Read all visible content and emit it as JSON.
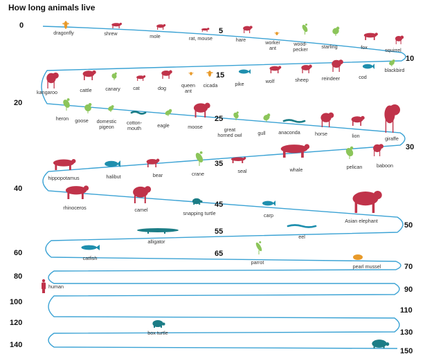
{
  "title": "How long animals live",
  "colors": {
    "track": "#3aa2d4",
    "mammal": "#c0334a",
    "bird": "#8cc55a",
    "fish": "#1f8fae",
    "reptile": "#1c7d86",
    "insect": "#e89a2a"
  },
  "numbers": [
    "0",
    "5",
    "10",
    "15",
    "20",
    "25",
    "30",
    "35",
    "40",
    "45",
    "50",
    "55",
    "60",
    "65",
    "70",
    "80",
    "90",
    "100",
    "110",
    "120",
    "130",
    "140",
    "150"
  ],
  "animals": [
    {
      "name": "dragonfly",
      "lines": [
        "dragonfly"
      ],
      "kind": "insect",
      "icon": "dragonfly-icon"
    },
    {
      "name": "shrew",
      "lines": [
        "shrew"
      ],
      "kind": "mammal",
      "icon": "shrew-icon"
    },
    {
      "name": "mole",
      "lines": [
        "mole"
      ],
      "kind": "mammal",
      "icon": "mole-icon"
    },
    {
      "name": "rat, mouse",
      "lines": [
        "rat, mouse"
      ],
      "kind": "mammal",
      "icon": "rat-mouse-icon"
    },
    {
      "name": "hare",
      "lines": [
        "hare"
      ],
      "kind": "mammal",
      "icon": "hare-icon"
    },
    {
      "name": "worker ant",
      "lines": [
        "worker",
        "ant"
      ],
      "kind": "insect",
      "icon": "worker-ant-icon"
    },
    {
      "name": "woodpecker",
      "lines": [
        "wood-",
        "pecker"
      ],
      "kind": "bird",
      "icon": "woodpecker-icon"
    },
    {
      "name": "starling",
      "lines": [
        "starling"
      ],
      "kind": "bird",
      "icon": "starling-icon"
    },
    {
      "name": "fox",
      "lines": [
        "fox"
      ],
      "kind": "mammal",
      "icon": "fox-icon"
    },
    {
      "name": "squirrel",
      "lines": [
        "squirrel"
      ],
      "kind": "mammal",
      "icon": "squirrel-icon"
    },
    {
      "name": "blackbird",
      "lines": [
        "blackbird"
      ],
      "kind": "bird",
      "icon": "blackbird-icon"
    },
    {
      "name": "cod",
      "lines": [
        "cod"
      ],
      "kind": "fish",
      "icon": "cod-icon"
    },
    {
      "name": "reindeer",
      "lines": [
        "reindeer"
      ],
      "kind": "mammal",
      "icon": "reindeer-icon"
    },
    {
      "name": "sheep",
      "lines": [
        "sheep"
      ],
      "kind": "mammal",
      "icon": "sheep-icon"
    },
    {
      "name": "wolf",
      "lines": [
        "wolf"
      ],
      "kind": "mammal",
      "icon": "wolf-icon"
    },
    {
      "name": "pike",
      "lines": [
        "pike"
      ],
      "kind": "fish",
      "icon": "pike-icon"
    },
    {
      "name": "cicada",
      "lines": [
        "cicada"
      ],
      "kind": "insect",
      "icon": "cicada-icon"
    },
    {
      "name": "queen ant",
      "lines": [
        "queen",
        "ant"
      ],
      "kind": "insect",
      "icon": "queen-ant-icon"
    },
    {
      "name": "dog",
      "lines": [
        "dog"
      ],
      "kind": "mammal",
      "icon": "dog-icon"
    },
    {
      "name": "cat",
      "lines": [
        "cat"
      ],
      "kind": "mammal",
      "icon": "cat-icon"
    },
    {
      "name": "canary",
      "lines": [
        "canary"
      ],
      "kind": "bird",
      "icon": "canary-icon"
    },
    {
      "name": "cattle",
      "lines": [
        "cattle"
      ],
      "kind": "mammal",
      "icon": "cattle-icon"
    },
    {
      "name": "kangaroo",
      "lines": [
        "kangaroo"
      ],
      "kind": "mammal",
      "icon": "kangaroo-icon"
    },
    {
      "name": "heron",
      "lines": [
        "heron"
      ],
      "kind": "bird",
      "icon": "heron-icon"
    },
    {
      "name": "goose",
      "lines": [
        "goose"
      ],
      "kind": "bird",
      "icon": "goose-icon"
    },
    {
      "name": "domestic pigeon",
      "lines": [
        "domestic",
        "pigeon"
      ],
      "kind": "bird",
      "icon": "pigeon-icon"
    },
    {
      "name": "cottonmouth",
      "lines": [
        "cotton-",
        "mouth"
      ],
      "kind": "reptile",
      "icon": "cottonmouth-icon"
    },
    {
      "name": "eagle",
      "lines": [
        "eagle"
      ],
      "kind": "bird",
      "icon": "eagle-icon"
    },
    {
      "name": "moose",
      "lines": [
        "moose"
      ],
      "kind": "mammal",
      "icon": "moose-icon"
    },
    {
      "name": "great horned owl",
      "lines": [
        "great",
        "horned owl"
      ],
      "kind": "bird",
      "icon": "owl-icon"
    },
    {
      "name": "gull",
      "lines": [
        "gull"
      ],
      "kind": "bird",
      "icon": "gull-icon"
    },
    {
      "name": "anaconda",
      "lines": [
        "anaconda"
      ],
      "kind": "reptile",
      "icon": "anaconda-icon"
    },
    {
      "name": "horse",
      "lines": [
        "horse"
      ],
      "kind": "mammal",
      "icon": "horse-icon"
    },
    {
      "name": "lion",
      "lines": [
        "lion"
      ],
      "kind": "mammal",
      "icon": "lion-icon"
    },
    {
      "name": "giraffe",
      "lines": [
        "giraffe"
      ],
      "kind": "mammal",
      "icon": "giraffe-icon"
    },
    {
      "name": "baboon",
      "lines": [
        "baboon"
      ],
      "kind": "mammal",
      "icon": "baboon-icon"
    },
    {
      "name": "pelican",
      "lines": [
        "pelican"
      ],
      "kind": "bird",
      "icon": "pelican-icon"
    },
    {
      "name": "whale",
      "lines": [
        "whale"
      ],
      "kind": "mammal",
      "icon": "whale-icon"
    },
    {
      "name": "seal",
      "lines": [
        "seal"
      ],
      "kind": "mammal",
      "icon": "seal-icon"
    },
    {
      "name": "crane",
      "lines": [
        "crane"
      ],
      "kind": "bird",
      "icon": "crane-icon"
    },
    {
      "name": "bear",
      "lines": [
        "bear"
      ],
      "kind": "mammal",
      "icon": "bear-icon"
    },
    {
      "name": "halibut",
      "lines": [
        "halibut"
      ],
      "kind": "fish",
      "icon": "halibut-icon"
    },
    {
      "name": "hippopotamus",
      "lines": [
        "hippopotamus"
      ],
      "kind": "mammal",
      "icon": "hippo-icon"
    },
    {
      "name": "rhinoceros",
      "lines": [
        "rhinoceros"
      ],
      "kind": "mammal",
      "icon": "rhino-icon"
    },
    {
      "name": "camel",
      "lines": [
        "camel"
      ],
      "kind": "mammal",
      "icon": "camel-icon"
    },
    {
      "name": "snapping turtle",
      "lines": [
        "snapping turtle"
      ],
      "kind": "reptile",
      "icon": "snapping-turtle-icon"
    },
    {
      "name": "carp",
      "lines": [
        "carp"
      ],
      "kind": "fish",
      "icon": "carp-icon"
    },
    {
      "name": "Asian elephant",
      "lines": [
        "Asian elephant"
      ],
      "kind": "mammal",
      "icon": "elephant-icon"
    },
    {
      "name": "eel",
      "lines": [
        "eel"
      ],
      "kind": "fish",
      "icon": "eel-icon"
    },
    {
      "name": "alligator",
      "lines": [
        "alligator"
      ],
      "kind": "reptile",
      "icon": "alligator-icon"
    },
    {
      "name": "catfish",
      "lines": [
        "catfish"
      ],
      "kind": "fish",
      "icon": "catfish-icon"
    },
    {
      "name": "parrot",
      "lines": [
        "parrot"
      ],
      "kind": "bird",
      "icon": "parrot-icon"
    },
    {
      "name": "pearl mussel",
      "lines": [
        "pearl mussel"
      ],
      "kind": "insect",
      "icon": "pearl-mussel-icon"
    },
    {
      "name": "human",
      "lines": [
        "human"
      ],
      "kind": "mammal",
      "icon": "human-icon"
    },
    {
      "name": "box turtle",
      "lines": [
        "box turtle"
      ],
      "kind": "reptile",
      "icon": "box-turtle-icon"
    },
    {
      "name": "tortoise",
      "lines": [],
      "kind": "reptile",
      "icon": "tortoise-icon"
    }
  ]
}
